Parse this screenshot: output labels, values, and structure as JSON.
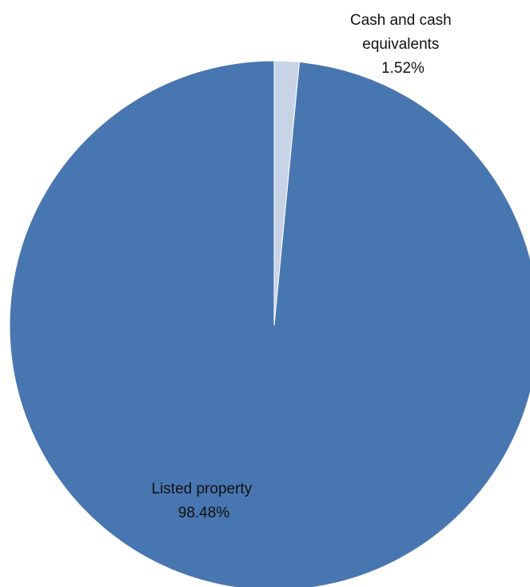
{
  "chart_data": {
    "type": "pie",
    "title": "",
    "legend": "none",
    "slices": [
      {
        "name": "Cash and cash equivalents",
        "label_lines": [
          "Cash and cash",
          "equivalents"
        ],
        "value": 1.52,
        "value_label": "1.52%",
        "color": "#c8d3e6"
      },
      {
        "name": "Listed property",
        "label_lines": [
          "Listed property"
        ],
        "value": 98.48,
        "value_label": "98.48%",
        "color": "#4876b0"
      }
    ]
  }
}
